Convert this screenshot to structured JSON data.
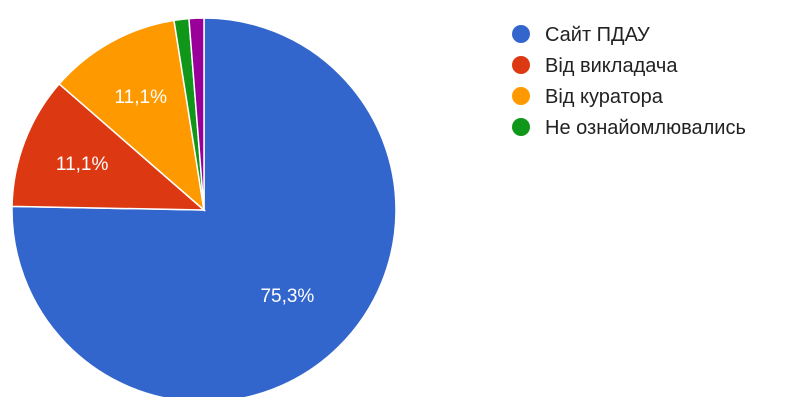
{
  "chart_data": {
    "type": "pie",
    "title": "",
    "legend_position": "right",
    "slices": [
      {
        "label": "Сайт ПДАУ",
        "value": 75.3,
        "display": "75,3%",
        "color": "#3366cc"
      },
      {
        "label": "Від викладача",
        "value": 11.1,
        "display": "11,1%",
        "color": "#dc3912"
      },
      {
        "label": "Від куратора",
        "value": 11.1,
        "display": "11,1%",
        "color": "#ff9900"
      },
      {
        "label": "Не ознайомлювались",
        "value": 1.25,
        "display": "",
        "color": "#109618"
      },
      {
        "label": "",
        "value": 1.25,
        "display": "",
        "color": "#990099"
      }
    ]
  }
}
